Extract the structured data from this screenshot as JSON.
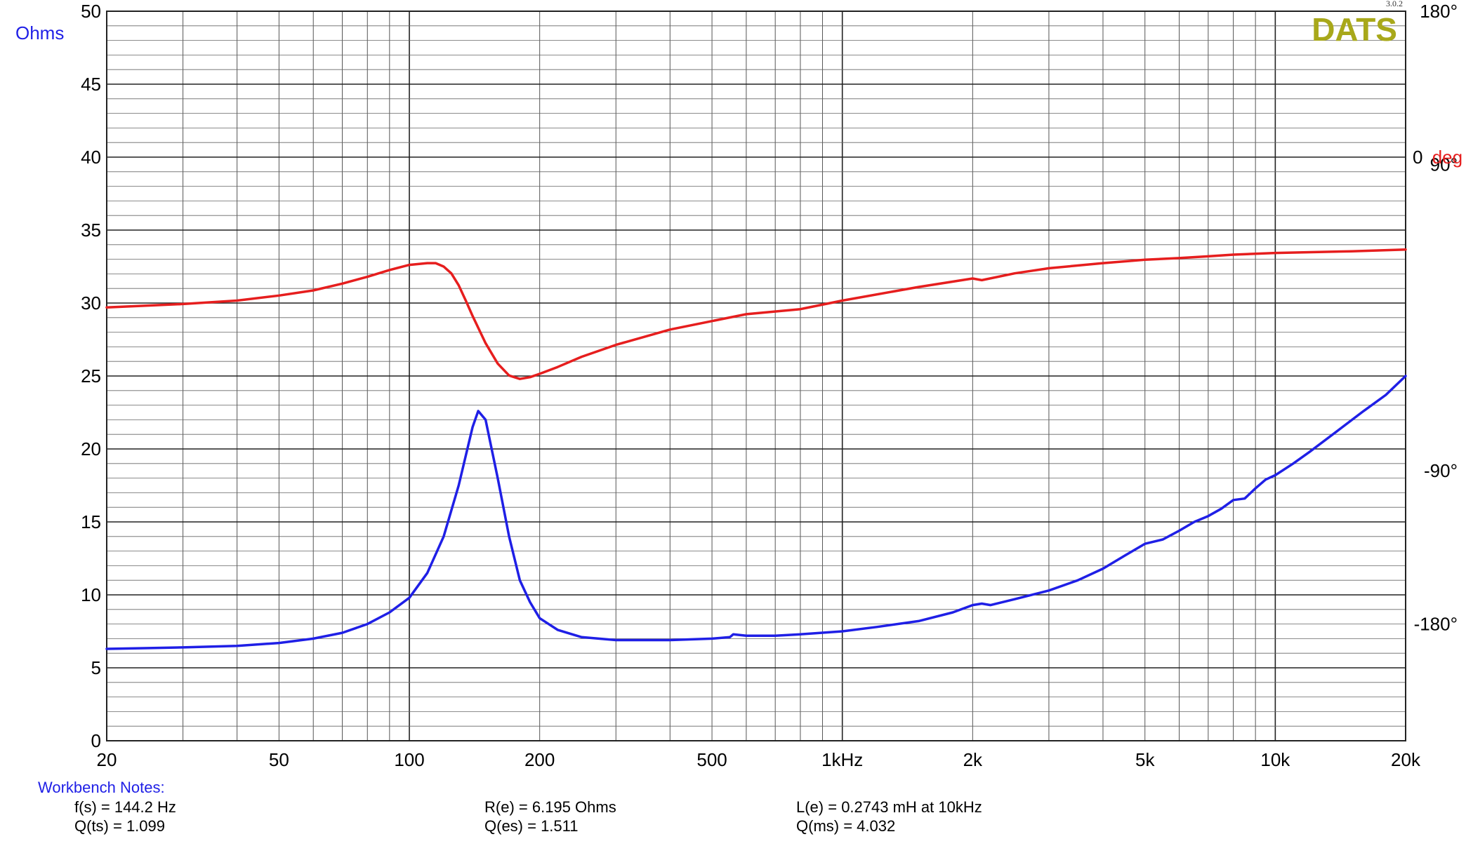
{
  "chart_data": {
    "type": "line",
    "log_x": true,
    "xlim": [
      20,
      20000
    ],
    "ylim": [
      0,
      50
    ],
    "y2lim": [
      -180,
      180
    ],
    "grid": true,
    "legend": "none",
    "left_axis_title": "Ohms",
    "right_axis_unit_value": "0",
    "right_axis_unit_label": "deg",
    "brand": "DATS",
    "version": "3.0.2",
    "x_ticks": [
      {
        "value": 20,
        "label": "20"
      },
      {
        "value": 50,
        "label": "50"
      },
      {
        "value": 100,
        "label": "100"
      },
      {
        "value": 200,
        "label": "200"
      },
      {
        "value": 500,
        "label": "500"
      },
      {
        "value": 1000,
        "label": "1kHz"
      },
      {
        "value": 2000,
        "label": "2k"
      },
      {
        "value": 5000,
        "label": "5k"
      },
      {
        "value": 10000,
        "label": "10k"
      },
      {
        "value": 20000,
        "label": "20k"
      }
    ],
    "y_ticks": [
      0,
      5,
      10,
      15,
      20,
      25,
      30,
      35,
      40,
      45,
      50
    ],
    "y2_ticks": [
      {
        "value": 180,
        "label": "180°"
      },
      {
        "value": 90,
        "label": "90°"
      },
      {
        "value": -90,
        "label": "-90°"
      },
      {
        "value": -180,
        "label": "-180°"
      }
    ],
    "colors": {
      "impedance": "#1f1fe6",
      "phase": "#e61e1e",
      "brand": "#a8a81a",
      "grid": "#333333"
    },
    "series": [
      {
        "key": "impedance",
        "axis": "left",
        "x": [
          20,
          25,
          30,
          40,
          50,
          60,
          70,
          80,
          90,
          100,
          110,
          120,
          130,
          140,
          144.2,
          150,
          160,
          170,
          180,
          190,
          200,
          220,
          250,
          300,
          400,
          500,
          550,
          560,
          600,
          700,
          800,
          1000,
          1200,
          1500,
          1800,
          2000,
          2100,
          2200,
          2500,
          3000,
          3500,
          4000,
          4500,
          5000,
          5500,
          6000,
          6500,
          7000,
          7500,
          8000,
          8500,
          9000,
          9500,
          10000,
          11000,
          12000,
          14000,
          16000,
          18000,
          20000
        ],
        "y": [
          6.3,
          6.35,
          6.4,
          6.5,
          6.7,
          7.0,
          7.4,
          8.0,
          8.8,
          9.8,
          11.5,
          14.0,
          17.5,
          21.5,
          22.6,
          22.0,
          18.0,
          14.0,
          11.0,
          9.5,
          8.4,
          7.6,
          7.1,
          6.9,
          6.9,
          7.0,
          7.1,
          7.3,
          7.2,
          7.2,
          7.3,
          7.5,
          7.8,
          8.2,
          8.8,
          9.3,
          9.4,
          9.3,
          9.7,
          10.3,
          11.0,
          11.8,
          12.7,
          13.5,
          13.8,
          14.4,
          15.0,
          15.4,
          15.9,
          16.5,
          16.6,
          17.3,
          17.9,
          18.2,
          19.0,
          19.8,
          21.3,
          22.6,
          23.7,
          25.0
        ]
      },
      {
        "key": "phase",
        "axis": "right",
        "x": [
          20,
          30,
          40,
          50,
          60,
          70,
          80,
          90,
          100,
          110,
          115,
          120,
          125,
          130,
          135,
          140,
          150,
          160,
          170,
          180,
          190,
          200,
          220,
          250,
          300,
          400,
          500,
          600,
          800,
          1000,
          1500,
          2000,
          2100,
          2500,
          3000,
          4000,
          5000,
          6000,
          7000,
          8000,
          10000,
          15000,
          20000
        ],
        "y": [
          6,
          8,
          10,
          13,
          16,
          20,
          24,
          28,
          31,
          32,
          32,
          30,
          26,
          19,
          10,
          1,
          -15,
          -27,
          -34,
          -36,
          -35,
          -33,
          -29,
          -23,
          -16,
          -7,
          -2,
          2,
          5,
          10,
          18,
          23,
          22,
          26,
          29,
          32,
          34,
          35,
          36,
          37,
          38,
          39,
          40
        ]
      }
    ]
  },
  "notes": {
    "title": "Workbench Notes:",
    "fs": "f(s) = 144.2 Hz",
    "qts": "Q(ts) = 1.099",
    "re": "R(e) = 6.195 Ohms",
    "qes": "Q(es) = 1.511",
    "le": "L(e) = 0.2743 mH at 10kHz",
    "qms": "Q(ms) = 4.032"
  }
}
